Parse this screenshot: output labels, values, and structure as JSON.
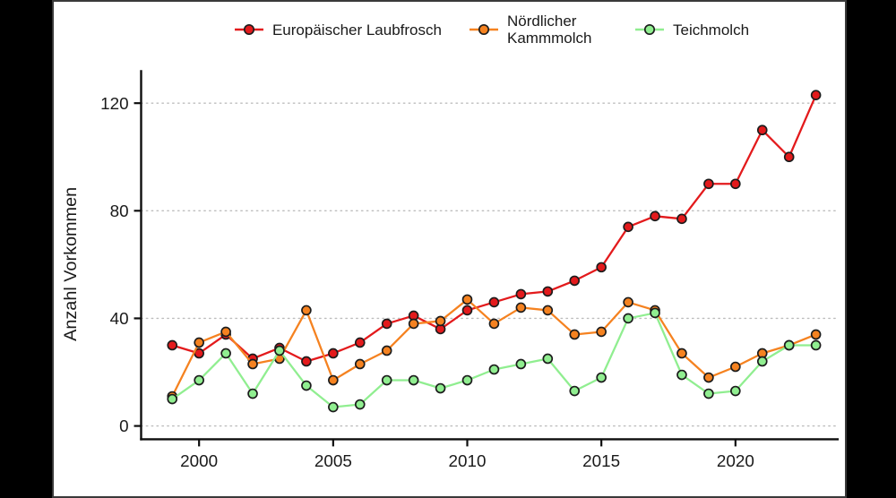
{
  "page": {
    "background": "#000000",
    "canvas_background": "#ffffff",
    "canvas_border": "#3a3a3a"
  },
  "chart_data": {
    "type": "line",
    "title": "",
    "xlabel": "",
    "ylabel": "Anzahl Vorkommen",
    "years": [
      1999,
      2000,
      2001,
      2002,
      2003,
      2004,
      2005,
      2006,
      2007,
      2008,
      2009,
      2010,
      2011,
      2012,
      2013,
      2014,
      2015,
      2016,
      2017,
      2018,
      2019,
      2020,
      2021,
      2022,
      2023
    ],
    "x_ticks": [
      2000,
      2005,
      2010,
      2015,
      2020
    ],
    "y_ticks": [
      0,
      40,
      80,
      120
    ],
    "xlim": [
      1998.5,
      2023.9
    ],
    "ylim": [
      0,
      135
    ],
    "grid": "horizontal-dotted",
    "legend_position": "top",
    "marker": "circle-filled-black-outline",
    "series": [
      {
        "name": "Europäischer Laubfrosch",
        "color": "#e31a1c",
        "marker_fill": "#e31a1c",
        "values": [
          30,
          27,
          34,
          25,
          29,
          24,
          27,
          31,
          38,
          41,
          36,
          43,
          46,
          49,
          50,
          54,
          59,
          74,
          78,
          77,
          90,
          90,
          110,
          100,
          123
        ]
      },
      {
        "name": "Nördlicher Kammmolch",
        "color": "#f58220",
        "marker_fill": "#f58220",
        "values": [
          11,
          31,
          35,
          23,
          25,
          43,
          17,
          23,
          28,
          38,
          39,
          47,
          38,
          44,
          43,
          34,
          35,
          46,
          43,
          27,
          18,
          22,
          27,
          30,
          34
        ]
      },
      {
        "name": "Teichmolch",
        "color": "#90ee90",
        "marker_fill": "#90ee90",
        "values": [
          10,
          17,
          27,
          12,
          28,
          15,
          7,
          8,
          17,
          17,
          14,
          17,
          21,
          23,
          25,
          13,
          18,
          40,
          42,
          19,
          12,
          13,
          24,
          30,
          30
        ]
      }
    ]
  }
}
